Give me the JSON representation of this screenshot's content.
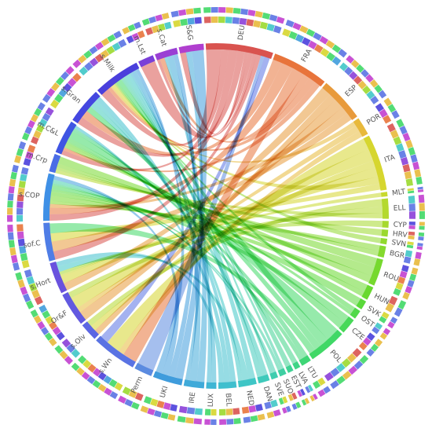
{
  "chart_data": {
    "type": "chord",
    "title": "",
    "segments": [
      {
        "label": "DEU",
        "group": "country",
        "weight": 6,
        "color": "#d9534f"
      },
      {
        "label": "FRA",
        "group": "country",
        "weight": 5,
        "color": "#e8743b"
      },
      {
        "label": "ESP",
        "group": "country",
        "weight": 4,
        "color": "#e89a3b"
      },
      {
        "label": "POR",
        "group": "country",
        "weight": 1.6,
        "color": "#e8b93b"
      },
      {
        "label": "ITA",
        "group": "country",
        "weight": 5,
        "color": "#d6d62e"
      },
      {
        "label": "MLT",
        "group": "country",
        "weight": 0.4,
        "color": "#c8d92e"
      },
      {
        "label": "ELL",
        "group": "country",
        "weight": 1.8,
        "color": "#b4d92e"
      },
      {
        "label": "CYP",
        "group": "country",
        "weight": 0.6,
        "color": "#a6d92e"
      },
      {
        "label": "HRV",
        "group": "country",
        "weight": 0.6,
        "color": "#9bd92e"
      },
      {
        "label": "SVN",
        "group": "country",
        "weight": 0.5,
        "color": "#90d92e"
      },
      {
        "label": "BGR",
        "group": "country",
        "weight": 1.0,
        "color": "#84d92e"
      },
      {
        "label": "ROU",
        "group": "country",
        "weight": 2.4,
        "color": "#76d92e"
      },
      {
        "label": "HUN",
        "group": "country",
        "weight": 1.2,
        "color": "#68d92e"
      },
      {
        "label": "SVK",
        "group": "country",
        "weight": 0.8,
        "color": "#5ad93a"
      },
      {
        "label": "OST",
        "group": "country",
        "weight": 0.8,
        "color": "#50d94a"
      },
      {
        "label": "CZE",
        "group": "country",
        "weight": 1.4,
        "color": "#48d958"
      },
      {
        "label": "POL",
        "group": "country",
        "weight": 3.4,
        "color": "#40d866"
      },
      {
        "label": "LTU",
        "group": "country",
        "weight": 0.9,
        "color": "#3fd676"
      },
      {
        "label": "LVA",
        "group": "country",
        "weight": 0.5,
        "color": "#3fd486"
      },
      {
        "label": "EST",
        "group": "country",
        "weight": 0.5,
        "color": "#3fd294"
      },
      {
        "label": "SUO",
        "group": "country",
        "weight": 0.6,
        "color": "#3fcfa2"
      },
      {
        "label": "SVE",
        "group": "country",
        "weight": 0.6,
        "color": "#3fcdaf"
      },
      {
        "label": "DAN",
        "group": "country",
        "weight": 1.0,
        "color": "#3fcabb"
      },
      {
        "label": "NED",
        "group": "country",
        "weight": 1.6,
        "color": "#3fc6c6"
      },
      {
        "label": "BEL",
        "group": "country",
        "weight": 1.6,
        "color": "#3fbfce"
      },
      {
        "label": "LUX",
        "group": "country",
        "weight": 0.9,
        "color": "#3fb6d4"
      },
      {
        "label": "IRE",
        "group": "country",
        "weight": 1.8,
        "color": "#3faad9"
      },
      {
        "label": "UKI",
        "group": "country",
        "weight": 2.6,
        "color": "#3f9cdc"
      },
      {
        "label": "Perm",
        "group": "farm",
        "weight": 1.6,
        "color": "#5b8be0"
      },
      {
        "label": "s.Wn",
        "group": "farm",
        "weight": 4.0,
        "color": "#5a73e3"
      },
      {
        "label": "s.Olv",
        "group": "farm",
        "weight": 1.6,
        "color": "#5c66e3"
      },
      {
        "label": "Or&F",
        "group": "farm",
        "weight": 3.0,
        "color": "#6259e0"
      },
      {
        "label": "s.Hort",
        "group": "farm",
        "weight": 2.8,
        "color": "#6a52de"
      },
      {
        "label": "sof.C",
        "group": "farm",
        "weight": 3.4,
        "color": "#4f7de6"
      },
      {
        "label": "s.COP",
        "group": "farm",
        "weight": 4.2,
        "color": "#3f90e6"
      },
      {
        "label": "m.Crp",
        "group": "farm",
        "weight": 1.6,
        "color": "#4a6de6"
      },
      {
        "label": "m.C&L",
        "group": "farm",
        "weight": 3.0,
        "color": "#3f55e3"
      },
      {
        "label": "s.Gran",
        "group": "farm",
        "weight": 3.2,
        "color": "#4447e0"
      },
      {
        "label": "s.Milk",
        "group": "farm",
        "weight": 4.2,
        "color": "#4a3fdc"
      },
      {
        "label": "m.Lst",
        "group": "farm",
        "weight": 1.4,
        "color": "#7a3fd8"
      },
      {
        "label": "s.Cat",
        "group": "farm",
        "weight": 2.0,
        "color": "#9a3fd4"
      },
      {
        "label": "S&G",
        "group": "farm",
        "weight": 2.2,
        "color": "#b03fcf"
      }
    ],
    "outer_ring_palette": [
      "#d9534f",
      "#e8743b",
      "#e8b93b",
      "#d6d62e",
      "#9bd92e",
      "#40d866",
      "#3fc6c6",
      "#3f9cdc",
      "#5a73e3",
      "#4a3fdc",
      "#8b3fd8",
      "#c23fcf"
    ],
    "links": [
      [
        "DEU",
        "s.Milk",
        1.6
      ],
      [
        "DEU",
        "m.C&L",
        0.8
      ],
      [
        "DEU",
        "s.COP",
        1.0
      ],
      [
        "DEU",
        "s.Gran",
        0.8
      ],
      [
        "DEU",
        "S&G",
        0.4
      ],
      [
        "DEU",
        "m.Lst",
        0.5
      ],
      [
        "DEU",
        "s.Cat",
        0.4
      ],
      [
        "DEU",
        "sof.C",
        0.5
      ],
      [
        "FRA",
        "s.Gran",
        0.8
      ],
      [
        "FRA",
        "s.COP",
        1.0
      ],
      [
        "FRA",
        "s.Wn",
        1.0
      ],
      [
        "FRA",
        "s.Cat",
        0.6
      ],
      [
        "FRA",
        "s.Milk",
        0.6
      ],
      [
        "FRA",
        "m.C&L",
        0.5
      ],
      [
        "ESP",
        "s.Hort",
        0.8
      ],
      [
        "ESP",
        "s.Olv",
        0.6
      ],
      [
        "ESP",
        "Or&F",
        0.8
      ],
      [
        "ESP",
        "s.COP",
        0.6
      ],
      [
        "ESP",
        "sof.C",
        0.6
      ],
      [
        "POR",
        "s.Milk",
        0.3
      ],
      [
        "POR",
        "Or&F",
        0.4
      ],
      [
        "POR",
        "s.Wn",
        0.4
      ],
      [
        "ITA",
        "s.Wn",
        1.0
      ],
      [
        "ITA",
        "Or&F",
        1.0
      ],
      [
        "ITA",
        "s.Olv",
        0.6
      ],
      [
        "ITA",
        "s.Hort",
        0.8
      ],
      [
        "ITA",
        "s.Milk",
        0.6
      ],
      [
        "ITA",
        "sof.C",
        0.5
      ],
      [
        "MLT",
        "s.Hort",
        0.2
      ],
      [
        "ELL",
        "s.Olv",
        0.6
      ],
      [
        "ELL",
        "Or&F",
        0.5
      ],
      [
        "ELL",
        "m.Crp",
        0.4
      ],
      [
        "CYP",
        "s.Hort",
        0.3
      ],
      [
        "HRV",
        "m.Crp",
        0.3
      ],
      [
        "SVN",
        "s.Milk",
        0.3
      ],
      [
        "BGR",
        "s.COP",
        0.5
      ],
      [
        "BGR",
        "m.Crp",
        0.4
      ],
      [
        "ROU",
        "m.Crp",
        0.8
      ],
      [
        "ROU",
        "s.COP",
        0.8
      ],
      [
        "ROU",
        "m.C&L",
        0.6
      ],
      [
        "HUN",
        "s.COP",
        0.6
      ],
      [
        "HUN",
        "m.C&L",
        0.4
      ],
      [
        "SVK",
        "s.COP",
        0.4
      ],
      [
        "OST",
        "s.Milk",
        0.4
      ],
      [
        "OST",
        "m.C&L",
        0.3
      ],
      [
        "CZE",
        "s.COP",
        0.6
      ],
      [
        "CZE",
        "m.C&L",
        0.6
      ],
      [
        "POL",
        "m.C&L",
        1.2
      ],
      [
        "POL",
        "s.Milk",
        0.8
      ],
      [
        "POL",
        "s.Gran",
        0.6
      ],
      [
        "POL",
        "sof.C",
        0.6
      ],
      [
        "LTU",
        "m.C&L",
        0.4
      ],
      [
        "LTU",
        "s.COP",
        0.3
      ],
      [
        "LVA",
        "m.C&L",
        0.3
      ],
      [
        "EST",
        "s.Milk",
        0.3
      ],
      [
        "SUO",
        "s.Milk",
        0.3
      ],
      [
        "SUO",
        "s.COP",
        0.3
      ],
      [
        "SVE",
        "s.COP",
        0.3
      ],
      [
        "SVE",
        "s.Milk",
        0.3
      ],
      [
        "DAN",
        "s.Gran",
        0.5
      ],
      [
        "DAN",
        "s.Milk",
        0.5
      ],
      [
        "NED",
        "s.Milk",
        0.6
      ],
      [
        "NED",
        "s.Hort",
        0.6
      ],
      [
        "NED",
        "s.Gran",
        0.4
      ],
      [
        "BEL",
        "s.Gran",
        0.5
      ],
      [
        "BEL",
        "m.C&L",
        0.5
      ],
      [
        "BEL",
        "s.Hort",
        0.5
      ],
      [
        "LUX",
        "s.Milk",
        0.4
      ],
      [
        "LUX",
        "s.Cat",
        0.4
      ],
      [
        "IRE",
        "s.Cat",
        0.8
      ],
      [
        "IRE",
        "s.Milk",
        0.8
      ],
      [
        "IRE",
        "S&G",
        0.4
      ],
      [
        "UKI",
        "S&G",
        0.8
      ],
      [
        "UKI",
        "s.Cat",
        0.6
      ],
      [
        "UKI",
        "s.COP",
        0.6
      ],
      [
        "UKI",
        "s.Milk",
        0.6
      ],
      [
        "Perm",
        "DEU",
        0.4
      ],
      [
        "s.Wn",
        "DEU",
        0.6
      ]
    ]
  }
}
